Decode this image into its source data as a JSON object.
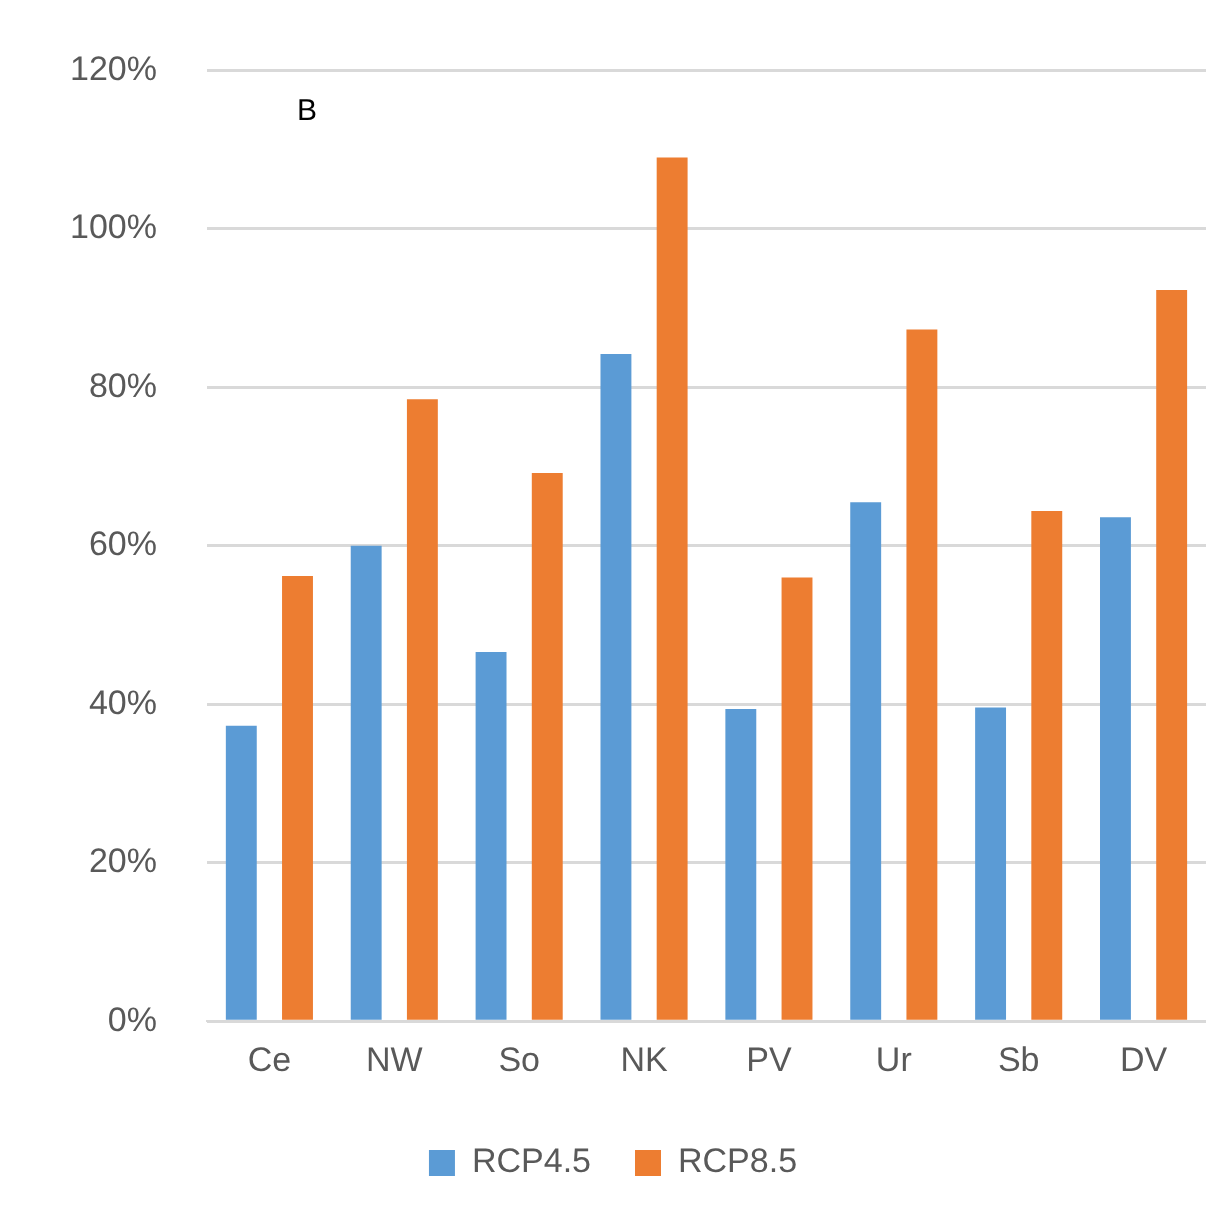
{
  "chart_data": {
    "type": "bar",
    "annotations": [
      "B"
    ],
    "categories": [
      "Ce",
      "NW",
      "So",
      "NK",
      "PV",
      "Ur",
      "Sb",
      "DV"
    ],
    "series": [
      {
        "name": "RCP4.5",
        "color": "#5b9bd5",
        "values": [
          37.3,
          60.0,
          46.6,
          84.2,
          39.4,
          65.5,
          39.6,
          63.6
        ]
      },
      {
        "name": "RCP8.5",
        "color": "#ed7d31",
        "values": [
          56.2,
          78.5,
          69.2,
          109.0,
          56.0,
          87.3,
          64.4,
          92.3
        ]
      }
    ],
    "ylim": [
      0,
      120
    ],
    "yticks": [
      {
        "value": 0,
        "label": "0%"
      },
      {
        "value": 20,
        "label": "20%"
      },
      {
        "value": 40,
        "label": "40%"
      },
      {
        "value": 60,
        "label": "60%"
      },
      {
        "value": 80,
        "label": "80%"
      },
      {
        "value": 100,
        "label": "100%"
      },
      {
        "value": 120,
        "label": "120%"
      }
    ],
    "grid": "y",
    "legend": "bottom"
  }
}
